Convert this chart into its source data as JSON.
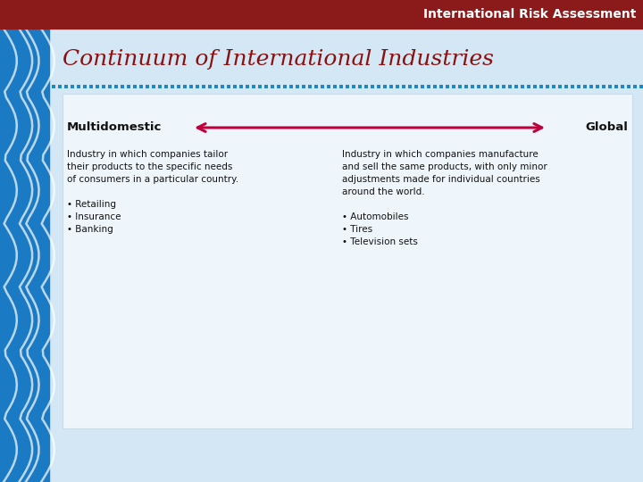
{
  "header_text": "International Risk Assessment",
  "header_bg": "#8B1A1A",
  "header_text_color": "#FFFFFF",
  "slide_bg": "#D3E8F4",
  "left_stripe_color1": "#1A7AC4",
  "left_stripe_color2": "#FFFFFF",
  "title": "Continuum of International Industries",
  "title_color": "#8B1010",
  "title_fontsize": 18,
  "dot_line_color": "#2288BB",
  "box_bg": "#EEF6FC",
  "box_edge_color": "#C8DCE8",
  "arrow_color": "#C0003C",
  "left_label": "Multidomestic",
  "right_label": "Global",
  "label_fontsize": 9.5,
  "left_desc_line1": "Industry in which companies tailor",
  "left_desc_line2": "their products to the specific needs",
  "left_desc_line3": "of consumers in a particular country.",
  "left_desc_line4": "• Retailing",
  "left_desc_line5": "• Insurance",
  "left_desc_line6": "• Banking",
  "right_desc_line1": "Industry in which companies manufacture",
  "right_desc_line2": "and sell the same products, with only minor",
  "right_desc_line3": "adjustments made for individual countries",
  "right_desc_line4": "around the world.",
  "right_desc_line5": "• Automobiles",
  "right_desc_line6": "• Tires",
  "right_desc_line7": "• Television sets",
  "desc_fontsize": 7.5
}
